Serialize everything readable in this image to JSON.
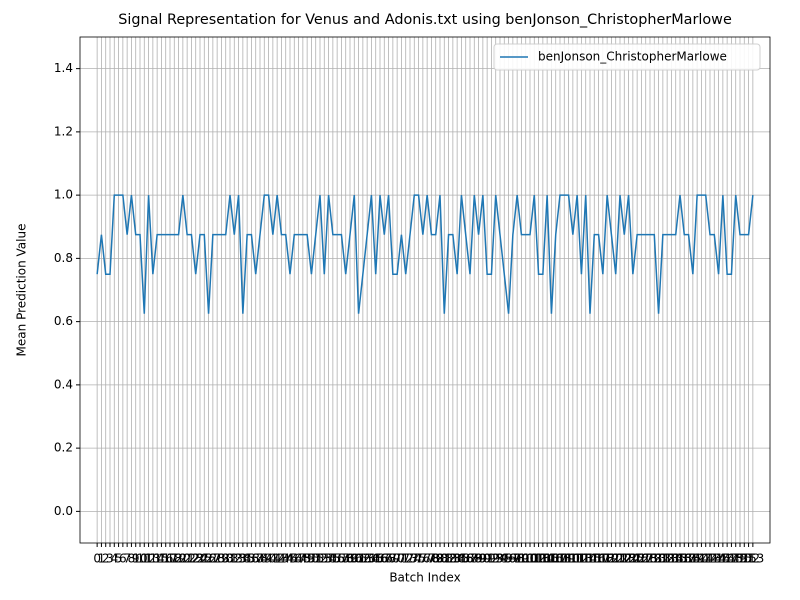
{
  "chart_data": {
    "type": "line",
    "title": "Signal Representation for Venus and Adonis.txt using benJonson_ChristopherMarlowe",
    "xlabel": "Batch Index",
    "ylabel": "Mean Prediction Value",
    "x": [
      0,
      1,
      2,
      3,
      4,
      5,
      6,
      7,
      8,
      9,
      10,
      11,
      12,
      13,
      14,
      15,
      16,
      17,
      18,
      19,
      20,
      21,
      22,
      23,
      24,
      25,
      26,
      27,
      28,
      29,
      30,
      31,
      32,
      33,
      34,
      35,
      36,
      37,
      38,
      39,
      40,
      41,
      42,
      43,
      44,
      45,
      46,
      47,
      48,
      49,
      50,
      51,
      52,
      53,
      54,
      55,
      56,
      57,
      58,
      59,
      60,
      61,
      62,
      63,
      64,
      65,
      66,
      67,
      68,
      69,
      70,
      71,
      72,
      73,
      74,
      75,
      76,
      77,
      78,
      79,
      80,
      81,
      82,
      83,
      84,
      85,
      86,
      87,
      88,
      89,
      90,
      91,
      92,
      93,
      94,
      95,
      96,
      97,
      98,
      99,
      100,
      101,
      102,
      103,
      104,
      105,
      106,
      107,
      108,
      109,
      110,
      111,
      112,
      113,
      114,
      115,
      116,
      117,
      118,
      119,
      120,
      121,
      122,
      123,
      124,
      125,
      126,
      127,
      128,
      129,
      130,
      131,
      132,
      133,
      134,
      135,
      136,
      137,
      138,
      139,
      140,
      141,
      142,
      143,
      144,
      145,
      146,
      147,
      148,
      149,
      150,
      151,
      152,
      153
    ],
    "xticks": [
      0,
      1,
      2,
      3,
      4,
      5,
      6,
      7,
      8,
      9,
      10,
      11,
      12,
      13,
      14,
      15,
      16,
      17,
      18,
      19,
      20,
      21,
      22,
      23,
      24,
      25,
      26,
      27,
      28,
      29,
      30,
      31,
      32,
      33,
      34,
      35,
      36,
      37,
      38,
      39,
      40,
      41,
      42,
      43,
      44,
      45,
      46,
      47,
      48,
      49,
      50,
      51,
      52,
      53,
      54,
      55,
      56,
      57,
      58,
      59,
      60,
      61,
      62,
      63,
      64,
      65,
      66,
      67,
      68,
      69,
      70,
      71,
      72,
      73,
      74,
      75,
      76,
      77,
      78,
      79,
      80,
      81,
      82,
      83,
      84,
      85,
      86,
      87,
      88,
      89,
      90,
      91,
      92,
      93,
      94,
      95,
      96,
      97,
      98,
      99,
      100,
      101,
      102,
      103,
      104,
      105,
      106,
      107,
      108,
      109,
      110,
      111,
      112,
      113,
      114,
      115,
      116,
      117,
      118,
      119,
      120,
      121,
      122,
      123,
      124,
      125,
      126,
      127,
      128,
      129,
      130,
      131,
      132,
      133,
      134,
      135,
      136,
      137,
      138,
      139,
      140,
      141,
      142,
      143,
      144,
      145,
      146,
      147,
      148,
      149,
      150,
      151,
      152,
      153
    ],
    "xlim": [
      -4,
      157
    ],
    "ylim": [
      -0.1,
      1.5
    ],
    "yticks": [
      {
        "value": 0,
        "label": "0.0"
      },
      0.2,
      0.4,
      0.6,
      0.8,
      {
        "value": 1,
        "label": "1.0"
      },
      1.2,
      1.4
    ],
    "grid": true,
    "legend": "upper right",
    "series": [
      {
        "name": "benJonson_ChristopherMarlowe",
        "color": "#1f77b4",
        "values": [
          0.75,
          0.875,
          0.75,
          0.75,
          1,
          1,
          1,
          0.875,
          1,
          0.875,
          0.875,
          0.625,
          1,
          0.75,
          0.875,
          0.875,
          0.875,
          0.875,
          0.875,
          0.875,
          1,
          0.875,
          0.875,
          0.75,
          0.875,
          0.875,
          0.625,
          0.875,
          0.875,
          0.875,
          0.875,
          1,
          0.875,
          1,
          0.625,
          0.875,
          0.875,
          0.75,
          0.875,
          1,
          1,
          0.875,
          1,
          0.875,
          0.875,
          0.75,
          0.875,
          0.875,
          0.875,
          0.875,
          0.75,
          0.875,
          1,
          0.75,
          1,
          0.875,
          0.875,
          0.875,
          0.75,
          0.875,
          1,
          0.625,
          0.75,
          0.875,
          1,
          0.75,
          1,
          0.875,
          1,
          0.75,
          0.75,
          0.875,
          0.75,
          0.875,
          1,
          1,
          0.875,
          1,
          0.875,
          0.875,
          1,
          0.625,
          0.875,
          0.875,
          0.75,
          1,
          0.875,
          0.75,
          1,
          0.875,
          1,
          0.75,
          0.75,
          1,
          0.875,
          0.75,
          0.625,
          0.875,
          1,
          0.875,
          0.875,
          0.875,
          1,
          0.75,
          0.75,
          1,
          0.625,
          0.875,
          1,
          1,
          1,
          0.875,
          1,
          0.75,
          1,
          0.625,
          0.875,
          0.875,
          0.75,
          1,
          0.875,
          0.75,
          1,
          0.875,
          1,
          0.75,
          0.875,
          0.875,
          0.875,
          0.875,
          0.875,
          0.625,
          0.875,
          0.875,
          0.875,
          0.875,
          1,
          0.875,
          0.875,
          0.75,
          1,
          1,
          1,
          0.875,
          0.875,
          0.75,
          1,
          0.75,
          0.75,
          1,
          0.875,
          0.875,
          0.875,
          1
        ]
      }
    ]
  }
}
